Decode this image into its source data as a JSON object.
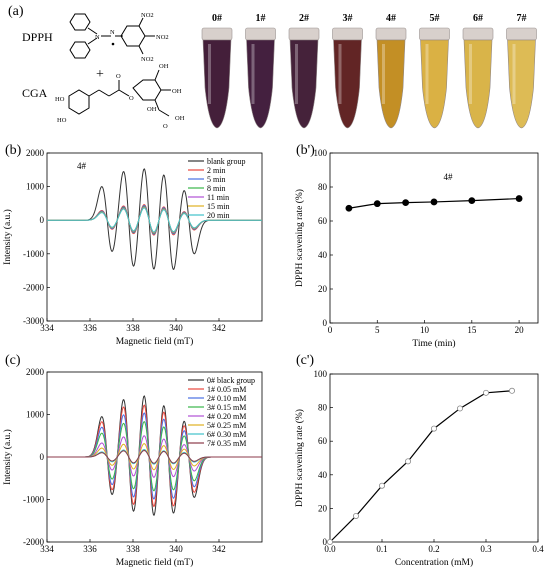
{
  "panel_a": {
    "label": "(a)",
    "reagent1": "DPPH",
    "plus": "+",
    "reagent2": "CGA",
    "molecule_labels": [
      "NO2",
      "NO2",
      "NO2",
      "N",
      "N",
      "O",
      "O",
      "HO",
      "HO",
      "OH",
      "OH",
      "OH",
      "O",
      "OH"
    ],
    "tubes": [
      {
        "label": "0#",
        "color": "#3a1430"
      },
      {
        "label": "1#",
        "color": "#3a1535"
      },
      {
        "label": "2#",
        "color": "#3c1730"
      },
      {
        "label": "3#",
        "color": "#5a1a1a"
      },
      {
        "label": "4#",
        "color": "#c08a1a"
      },
      {
        "label": "5#",
        "color": "#d9ad3a"
      },
      {
        "label": "6#",
        "color": "#d8b040"
      },
      {
        "label": "7#",
        "color": "#dcb84c"
      }
    ]
  },
  "chart_data": [
    {
      "id": "b",
      "panel_label": "(b)",
      "type": "line",
      "annotation": "4#",
      "xlabel": "Magnetic field (mT)",
      "ylabel": "Intensity (a.u.)",
      "xlim": [
        334,
        344
      ],
      "ylim": [
        -3000,
        2000
      ],
      "xticks": [
        334,
        336,
        338,
        340,
        342
      ],
      "yticks": [
        -3000,
        -2000,
        -1000,
        0,
        1000,
        2000
      ],
      "legend_position": "top-right",
      "peak_positions": [
        336.8,
        337.8,
        338.75,
        339.65,
        340.6
      ],
      "series": [
        {
          "name": "blank group",
          "color": "#333333",
          "amplitudes": [
            1000,
            1500,
            1650,
            1550,
            1000
          ]
        },
        {
          "name": "2 min",
          "color": "#e8453c",
          "amplitudes": [
            290,
            440,
            500,
            460,
            290
          ]
        },
        {
          "name": "5 min",
          "color": "#4a6fe3",
          "amplitudes": [
            270,
            410,
            470,
            430,
            270
          ]
        },
        {
          "name": "8 min",
          "color": "#39b54a",
          "amplitudes": [
            255,
            390,
            445,
            405,
            255
          ]
        },
        {
          "name": "11 min",
          "color": "#b04fd6",
          "amplitudes": [
            245,
            370,
            425,
            390,
            245
          ]
        },
        {
          "name": "15 min",
          "color": "#e0b020",
          "amplitudes": [
            235,
            355,
            410,
            375,
            235
          ]
        },
        {
          "name": "20 min",
          "color": "#3fc1c9",
          "amplitudes": [
            225,
            345,
            395,
            360,
            225
          ]
        }
      ]
    },
    {
      "id": "b2",
      "panel_label": "(b')",
      "type": "line",
      "annotation": "4#",
      "xlabel": "Time (min)",
      "ylabel": "DPPH scavening rate (%)",
      "xlim": [
        0,
        22
      ],
      "ylim": [
        0,
        100
      ],
      "xticks": [
        0,
        5,
        10,
        15,
        20
      ],
      "yticks": [
        0,
        20,
        40,
        60,
        80,
        100
      ],
      "series": [
        {
          "name": "",
          "color": "#000000",
          "marker": "filled-circle",
          "x": [
            2,
            5,
            8,
            11,
            15,
            20
          ],
          "y": [
            67.5,
            70.2,
            70.8,
            71.2,
            72.0,
            73.2
          ]
        }
      ]
    },
    {
      "id": "c",
      "panel_label": "(c)",
      "type": "line",
      "xlabel": "Magnetic field (mT)",
      "ylabel": "Intensity (a.u.)",
      "xlim": [
        334,
        344
      ],
      "ylim": [
        -2000,
        2000
      ],
      "xticks": [
        334,
        336,
        338,
        340,
        342
      ],
      "yticks": [
        -2000,
        -1000,
        0,
        1000,
        2000
      ],
      "legend_position": "top-right",
      "peak_positions": [
        336.8,
        337.8,
        338.75,
        339.65,
        340.6
      ],
      "series": [
        {
          "name": "0# black group",
          "color": "#333333",
          "amplitudes": [
            950,
            1400,
            1550,
            1400,
            950
          ]
        },
        {
          "name": "1# 0.05 mM",
          "color": "#e8453c",
          "amplitudes": [
            830,
            1220,
            1320,
            1220,
            830
          ]
        },
        {
          "name": "2# 0.10 mM",
          "color": "#4a6fe3",
          "amplitudes": [
            700,
            1030,
            1120,
            1030,
            700
          ]
        },
        {
          "name": "3# 0.15 mM",
          "color": "#39b54a",
          "amplitudes": [
            560,
            820,
            900,
            820,
            560
          ]
        },
        {
          "name": "4# 0.20 mM",
          "color": "#b04fd6",
          "amplitudes": [
            330,
            490,
            540,
            490,
            330
          ]
        },
        {
          "name": "5# 0.25 mM",
          "color": "#e0b020",
          "amplitudes": [
            210,
            310,
            340,
            310,
            210
          ]
        },
        {
          "name": "6# 0.30 mM",
          "color": "#3fc1c9",
          "amplitudes": [
            120,
            170,
            190,
            170,
            120
          ]
        },
        {
          "name": "7# 0.35 mM",
          "color": "#8b3a4a",
          "amplitudes": [
            100,
            150,
            165,
            150,
            100
          ]
        }
      ]
    },
    {
      "id": "c2",
      "panel_label": "(c')",
      "type": "line",
      "xlabel": "Concentration (mM)",
      "ylabel": "DPPH scavening rate (%)",
      "xlim": [
        0,
        0.4
      ],
      "ylim": [
        0,
        100
      ],
      "xticks": [
        0.0,
        0.1,
        0.2,
        0.3,
        0.4
      ],
      "yticks": [
        0,
        20,
        40,
        60,
        80,
        100
      ],
      "series": [
        {
          "name": "",
          "color": "#000000",
          "marker": "open-circle",
          "x": [
            0,
            0.05,
            0.1,
            0.15,
            0.2,
            0.25,
            0.3,
            0.35
          ],
          "y": [
            0,
            15.5,
            33.5,
            48.0,
            67.5,
            79.5,
            88.8,
            90.0
          ]
        }
      ]
    }
  ]
}
